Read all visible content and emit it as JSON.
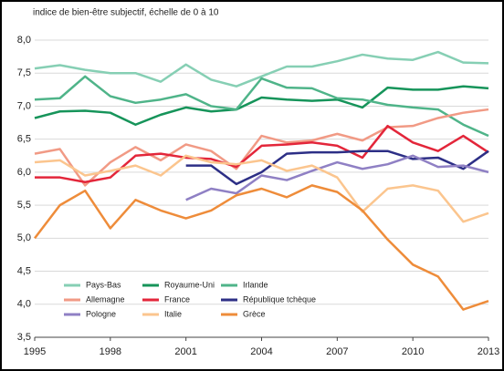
{
  "chart_data": {
    "type": "line",
    "title": "indice de bien-être subjectif, échelle de 0 à 10",
    "x": [
      1995,
      1996,
      1997,
      1998,
      1999,
      2000,
      2001,
      2002,
      2003,
      2004,
      2005,
      2006,
      2007,
      2008,
      2009,
      2010,
      2011,
      2012,
      2013
    ],
    "xlim": [
      1995,
      2013
    ],
    "xticks": [
      1995,
      1998,
      2001,
      2004,
      2007,
      2010,
      2013
    ],
    "ylim": [
      3.5,
      8
    ],
    "yticks": [
      {
        "value": 3.5,
        "label": "3,5"
      },
      {
        "value": 4,
        "label": "4,0"
      },
      {
        "value": 4.5,
        "label": "4,5"
      },
      {
        "value": 5,
        "label": "5,0"
      },
      {
        "value": 5.5,
        "label": "5,5"
      },
      {
        "value": 6,
        "label": "6,0"
      },
      {
        "value": 6.5,
        "label": "6,5"
      },
      {
        "value": 7,
        "label": "7,0"
      },
      {
        "value": 7.5,
        "label": "7,5"
      },
      {
        "value": 8,
        "label": "8,0"
      }
    ],
    "grid": true,
    "legend_position": "lower left",
    "series": [
      {
        "name": "Pays-Bas",
        "color": "#86cfb4",
        "values": [
          7.57,
          7.62,
          7.55,
          7.5,
          7.5,
          7.37,
          7.63,
          7.4,
          7.3,
          7.45,
          7.6,
          7.6,
          7.68,
          7.78,
          7.72,
          7.7,
          7.82,
          7.66,
          7.65
        ]
      },
      {
        "name": "Royaume-Uni",
        "color": "#16945a",
        "values": [
          6.82,
          6.92,
          6.93,
          6.9,
          6.72,
          6.87,
          6.98,
          6.92,
          6.95,
          7.13,
          7.1,
          7.08,
          7.1,
          6.98,
          7.28,
          7.25,
          7.25,
          7.3,
          7.27
        ]
      },
      {
        "name": "Irlande",
        "color": "#4fb489",
        "values": [
          7.1,
          7.12,
          7.45,
          7.15,
          7.05,
          7.1,
          7.18,
          7.0,
          6.95,
          7.42,
          7.28,
          7.27,
          7.12,
          7.1,
          7.02,
          6.98,
          6.95,
          6.72,
          6.55
        ]
      },
      {
        "name": "Allemagne",
        "color": "#f19a85",
        "values": [
          6.28,
          6.35,
          5.8,
          6.15,
          6.38,
          6.18,
          6.42,
          6.32,
          6.05,
          6.55,
          6.45,
          6.48,
          6.58,
          6.48,
          6.68,
          6.7,
          6.82,
          6.9,
          6.95
        ]
      },
      {
        "name": "France",
        "color": "#e3263a",
        "values": [
          5.92,
          5.92,
          5.85,
          5.92,
          6.25,
          6.28,
          6.22,
          6.2,
          6.08,
          6.4,
          6.42,
          6.45,
          6.4,
          6.22,
          6.7,
          6.45,
          6.32,
          6.55,
          6.3
        ]
      },
      {
        "name": "République tchèque",
        "color": "#2d2f86",
        "values": [
          null,
          null,
          null,
          null,
          null,
          null,
          6.1,
          6.1,
          5.82,
          6.0,
          6.28,
          6.3,
          6.3,
          6.32,
          6.32,
          6.2,
          6.22,
          6.05,
          6.32
        ]
      },
      {
        "name": "Pologne",
        "color": "#8f80c4",
        "values": [
          null,
          null,
          null,
          null,
          null,
          null,
          5.58,
          5.75,
          5.68,
          5.95,
          5.88,
          6.02,
          6.15,
          6.05,
          6.12,
          6.25,
          6.08,
          6.1,
          6.0
        ]
      },
      {
        "name": "Italie",
        "color": "#fbc58e",
        "values": [
          6.15,
          6.18,
          5.95,
          6.02,
          6.1,
          5.95,
          6.25,
          6.15,
          6.12,
          6.18,
          6.02,
          6.1,
          5.92,
          5.4,
          5.75,
          5.8,
          5.72,
          5.25,
          5.38
        ]
      },
      {
        "name": "Grèce",
        "color": "#ee8c3a",
        "values": [
          5.0,
          5.5,
          5.72,
          5.15,
          5.58,
          5.42,
          5.3,
          5.42,
          5.65,
          5.75,
          5.62,
          5.8,
          5.7,
          5.42,
          4.98,
          4.6,
          4.42,
          3.92,
          4.05
        ]
      }
    ]
  }
}
